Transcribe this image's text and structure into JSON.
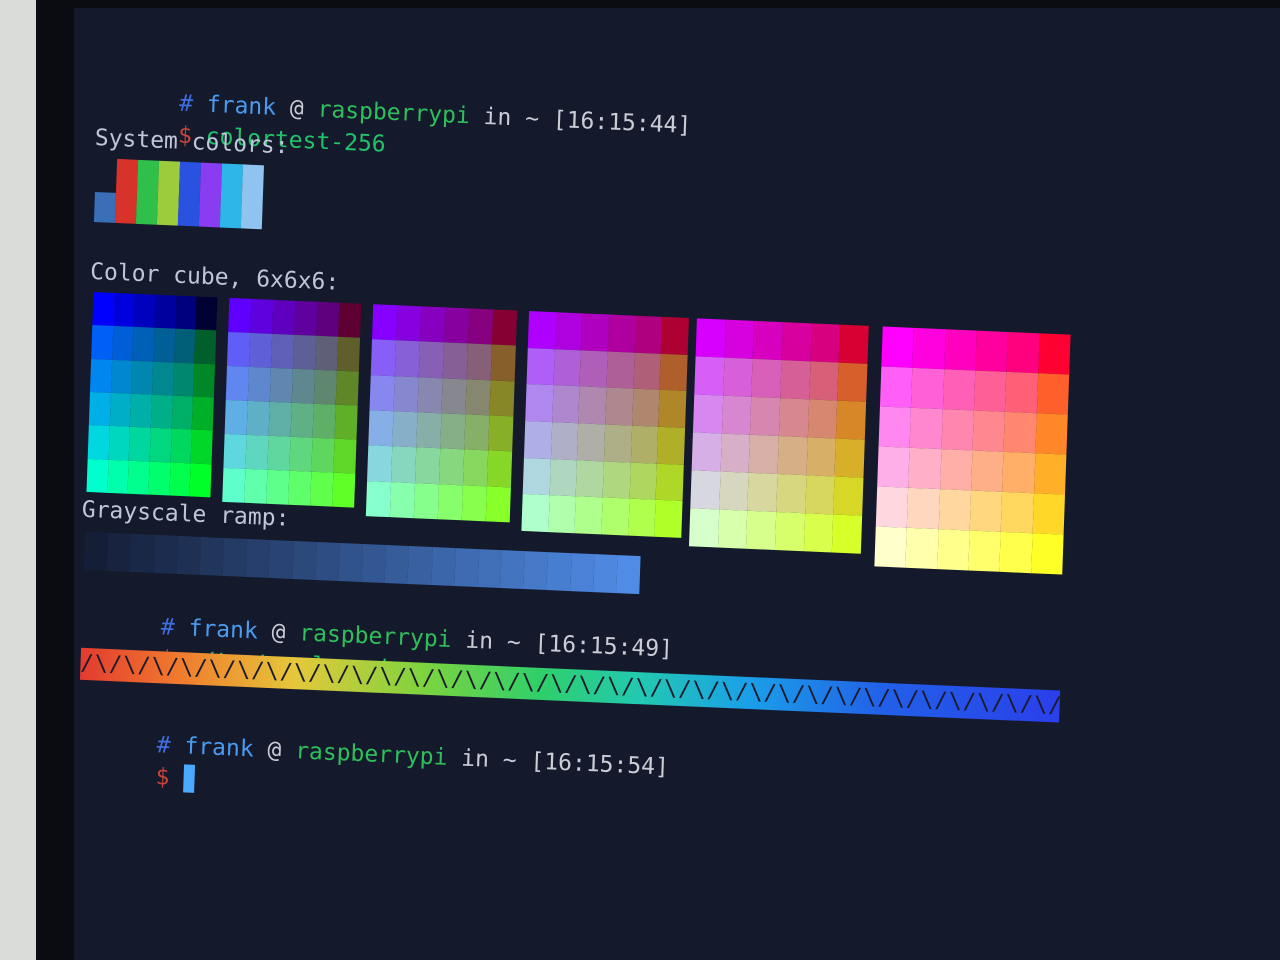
{
  "prompts": [
    {
      "hash": "#",
      "user": "frank",
      "at": "@",
      "host": "raspberrypi",
      "in": "in",
      "dir": "~",
      "time": "[16:15:44]",
      "dollar": "$",
      "command": "colortest-256"
    },
    {
      "hash": "#",
      "user": "frank",
      "at": "@",
      "host": "raspberrypi",
      "in": "in",
      "dir": "~",
      "time": "[16:15:49]",
      "dollar": "$",
      "command": "./test-color.sh"
    },
    {
      "hash": "#",
      "user": "frank",
      "at": "@",
      "host": "raspberrypi",
      "in": "in",
      "dir": "~",
      "time": "[16:15:54]",
      "dollar": "$",
      "command": ""
    }
  ],
  "labels": {
    "system_colors": "System colors:",
    "color_cube": "Color cube, 6x6x6:",
    "grayscale": "Grayscale ramp:"
  },
  "system_colors": [
    "#3a6fb8",
    "#d8332a",
    "#2fbf4a",
    "#9ccb3c",
    "#2a52e0",
    "#8a3cf0",
    "#2eb6e8",
    "#8fc3f0"
  ],
  "rainbow_pattern": "/\\/\\/\\/\\/\\/\\/\\/\\/\\/\\/\\/\\/\\/\\/\\/\\/\\/\\/\\/\\/\\/\\/\\/\\/\\/\\/\\/\\/\\/\\/\\/\\/\\/\\/\\/\\/\\/\\/\\/\\/\\/\\/\\/\\/\\/\\/\\/\\/\\/\\/\\/\\/\\/\\/\\/\\/\\/\\/\\/\\/\\/\\/\\/\\/\\/\\/\\/\\/\\/\\/\\/\\/"
}
